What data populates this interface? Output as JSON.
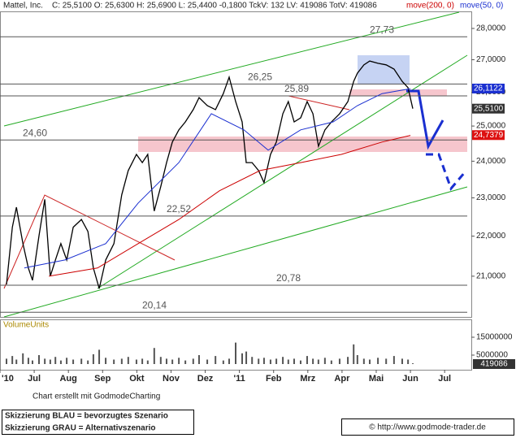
{
  "chart_data": {
    "type": "line",
    "quote": "C: 25,5100 O: 25,6300 H: 25,6900 L: 25,4400 -0,1800 TckV: 132 LV: 419086 TotV: 419086",
    "log_scale": true,
    "grid": false,
    "xlim": [
      0,
      13.78
    ],
    "xticks": [
      {
        "value": 0,
        "label": "'10"
      },
      {
        "value": 1,
        "label": "Jul"
      },
      {
        "value": 2,
        "label": "Aug"
      },
      {
        "value": 3,
        "label": "Sep"
      },
      {
        "value": 4,
        "label": "Okt"
      },
      {
        "value": 5,
        "label": "Nov"
      },
      {
        "value": 6,
        "label": "Dez"
      },
      {
        "value": 7,
        "label": "'11"
      },
      {
        "value": 8,
        "label": "Feb"
      },
      {
        "value": 9,
        "label": "Mrz"
      },
      {
        "value": 10,
        "label": "Apr"
      },
      {
        "value": 11,
        "label": "Mai"
      },
      {
        "value": 12,
        "label": "Jun"
      },
      {
        "value": 13,
        "label": "Jul"
      }
    ],
    "ylim": [
      20.03,
      28.56
    ],
    "yticks": [
      {
        "value": 21,
        "label": "21,0000"
      },
      {
        "value": 22,
        "label": "22,0000"
      },
      {
        "value": 23,
        "label": "23,0000"
      },
      {
        "value": 24,
        "label": "24,0000"
      },
      {
        "value": 25,
        "label": "25,0000"
      },
      {
        "value": 26,
        "label": "26,0000"
      },
      {
        "value": 27,
        "label": "27,0000"
      },
      {
        "value": 28,
        "label": "28,0000"
      }
    ],
    "series": [
      {
        "name": "Mattel, Inc.",
        "color": "#000000",
        "x": [
          0.19,
          0.36,
          0.48,
          0.67,
          0.83,
          0.95,
          1.14,
          1.31,
          1.47,
          1.62,
          1.78,
          1.95,
          2.14,
          2.38,
          2.57,
          2.73,
          2.9,
          3.09,
          3.33,
          3.56,
          3.75,
          3.99,
          4.16,
          4.32,
          4.51,
          4.7,
          4.87,
          5.04,
          5.23,
          5.42,
          5.65,
          5.82,
          6.06,
          6.3,
          6.53,
          6.7,
          6.89,
          7.08,
          7.2,
          7.37,
          7.56,
          7.72,
          7.91,
          8.08,
          8.27,
          8.43,
          8.6,
          8.79,
          8.98,
          9.15,
          9.31,
          9.5,
          9.69,
          9.93,
          10.17,
          10.34,
          10.45,
          10.64,
          10.81,
          11.05,
          11.29,
          11.52,
          11.76,
          11.93,
          12.07
        ],
        "values": [
          20.8,
          22.23,
          22.75,
          21.81,
          21.2,
          20.9,
          22.01,
          22.96,
          21.0,
          21.4,
          21.81,
          21.4,
          22.23,
          22.43,
          22.12,
          21.2,
          20.7,
          21.4,
          21.81,
          23.08,
          23.74,
          24.19,
          23.96,
          24.19,
          22.65,
          23.3,
          23.96,
          24.54,
          24.89,
          25.12,
          25.48,
          25.84,
          25.6,
          25.48,
          25.96,
          26.46,
          25.72,
          25.12,
          23.96,
          23.96,
          23.74,
          23.41,
          24.19,
          24.54,
          25.36,
          25.72,
          25.12,
          25.24,
          25.72,
          25.36,
          24.42,
          24.89,
          25.12,
          25.36,
          25.72,
          26.33,
          26.58,
          26.84,
          26.96,
          26.89,
          26.84,
          26.71,
          26.33,
          26.14,
          25.51
        ]
      },
      {
        "name": "move(200, 0)",
        "color": "#cc0000",
        "x": [
          1.43,
          2.85,
          4.04,
          5.23,
          6.42,
          7.6,
          8.79,
          9.98,
          11.17,
          12.0
        ],
        "values": [
          21.0,
          21.2,
          21.81,
          22.43,
          23.19,
          23.74,
          23.96,
          24.19,
          24.54,
          24.73
        ]
      },
      {
        "name": "move(50, 0)",
        "color": "#1a2fd0",
        "x": [
          0.71,
          1.9,
          3.09,
          4.04,
          5.23,
          6.18,
          7.13,
          7.84,
          8.79,
          9.74,
          10.45,
          11.17,
          12.0
        ],
        "values": [
          21.2,
          21.4,
          21.81,
          22.86,
          23.96,
          25.36,
          24.89,
          24.31,
          24.89,
          25.12,
          25.6,
          25.96,
          26.11
        ]
      }
    ],
    "levels": [
      {
        "value": 27.73,
        "label": "27,73"
      },
      {
        "value": 26.25,
        "label": "26,25"
      },
      {
        "value": 25.89,
        "label": "25,89"
      },
      {
        "value": 24.6,
        "label": "24,60"
      },
      {
        "value": 22.52,
        "label": "22,52"
      },
      {
        "value": 20.78,
        "label": "20,78"
      },
      {
        "value": 20.14,
        "label": "20,14"
      }
    ],
    "price_markers": [
      {
        "value": 26.1122,
        "label": "26,1122",
        "color": "#1a2fd0"
      },
      {
        "value": 25.51,
        "label": "25,5100",
        "color": "#333333"
      },
      {
        "value": 24.7379,
        "label": "24,7379",
        "color": "#dd1111"
      }
    ],
    "volume": {
      "label": "VolumeUnits",
      "last_label": "419086",
      "color": "#555555",
      "ylim": [
        0,
        25000000
      ],
      "yticks": [
        5000000,
        15000000
      ],
      "values": [
        3000000,
        4500000,
        2500000,
        6000000,
        3500000,
        2000000,
        5000000,
        3000000,
        2500000,
        4000000,
        2000000,
        3500000,
        2500000,
        3000000,
        2000000,
        5500000,
        8000000,
        3500000,
        2500000,
        3000000,
        4000000,
        2500000,
        3000000,
        2000000,
        9000000,
        4000000,
        3000000,
        2500000,
        3500000,
        2000000,
        3000000,
        5000000,
        2500000,
        4500000,
        2000000,
        3000000,
        12000000,
        6000000,
        7000000,
        4000000,
        3000000,
        3500000,
        2500000,
        3000000,
        4000000,
        2500000,
        3000000,
        2000000,
        4500000,
        3000000,
        2500000,
        3500000,
        2000000,
        3000000,
        4000000,
        11000000,
        5000000,
        3000000,
        2500000,
        3500000,
        3000000,
        4500000,
        3000000,
        2500000,
        419086
      ]
    },
    "credit": "Chart erstellt mit GodmodeCharting",
    "scenario_notes": [
      "Skizzierung BLAU = bevorzugtes Szenario",
      "Skizzierung GRAU = Alternativszenario"
    ],
    "source": "© http://www.godmode-trader.de"
  }
}
